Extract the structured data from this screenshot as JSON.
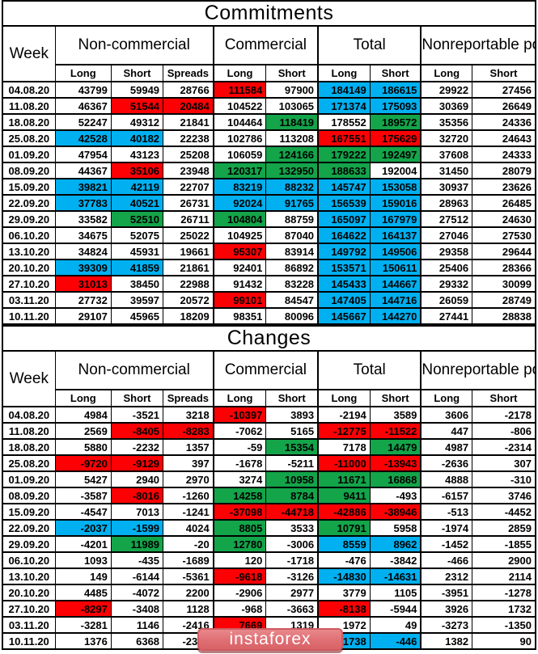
{
  "colors": {
    "red": "#fd0004",
    "green": "#14a44a",
    "blue": "#00b0f0"
  },
  "watermark": {
    "text": "instaforex"
  },
  "commitments": {
    "title": "Commitments",
    "week_label": "Week",
    "groups": [
      "Non-commercial",
      "Commercial",
      "Total",
      "Nonreportable positions"
    ],
    "subheaders": [
      "Long",
      "Short",
      "Spreads",
      "Long",
      "Short",
      "Long",
      "Short",
      "Long",
      "Short"
    ],
    "rows": [
      {
        "date": "04.08.20",
        "cells": [
          [
            "43799",
            ""
          ],
          [
            "59949",
            ""
          ],
          [
            "28766",
            ""
          ],
          [
            "111584",
            "r"
          ],
          [
            "97900",
            ""
          ],
          [
            "184149",
            "b"
          ],
          [
            "186615",
            "b"
          ],
          [
            "29922",
            ""
          ],
          [
            "27456",
            ""
          ]
        ]
      },
      {
        "date": "11.08.20",
        "cells": [
          [
            "46367",
            ""
          ],
          [
            "51544",
            "r"
          ],
          [
            "20484",
            "r"
          ],
          [
            "104522",
            ""
          ],
          [
            "103065",
            ""
          ],
          [
            "171374",
            "b"
          ],
          [
            "175093",
            "b"
          ],
          [
            "30369",
            ""
          ],
          [
            "26649",
            ""
          ]
        ]
      },
      {
        "date": "18.08.20",
        "cells": [
          [
            "52247",
            ""
          ],
          [
            "49312",
            ""
          ],
          [
            "21841",
            ""
          ],
          [
            "104464",
            ""
          ],
          [
            "118419",
            "g"
          ],
          [
            "178552",
            ""
          ],
          [
            "189572",
            "g"
          ],
          [
            "35356",
            ""
          ],
          [
            "24336",
            ""
          ]
        ]
      },
      {
        "date": "25.08.20",
        "cells": [
          [
            "42528",
            "b"
          ],
          [
            "40182",
            "b"
          ],
          [
            "22238",
            ""
          ],
          [
            "102786",
            ""
          ],
          [
            "113208",
            ""
          ],
          [
            "167551",
            "r"
          ],
          [
            "175629",
            "r"
          ],
          [
            "32720",
            ""
          ],
          [
            "24643",
            ""
          ]
        ]
      },
      {
        "date": "01.09.20",
        "cells": [
          [
            "47954",
            ""
          ],
          [
            "43123",
            ""
          ],
          [
            "25208",
            ""
          ],
          [
            "106059",
            ""
          ],
          [
            "124166",
            "g"
          ],
          [
            "179222",
            "g"
          ],
          [
            "192497",
            "g"
          ],
          [
            "37608",
            ""
          ],
          [
            "24333",
            ""
          ]
        ]
      },
      {
        "date": "08.09.20",
        "cells": [
          [
            "44367",
            ""
          ],
          [
            "35106",
            "r"
          ],
          [
            "23948",
            ""
          ],
          [
            "120317",
            "g"
          ],
          [
            "132950",
            "g"
          ],
          [
            "188633",
            "g"
          ],
          [
            "192004",
            ""
          ],
          [
            "31450",
            ""
          ],
          [
            "28079",
            ""
          ]
        ]
      },
      {
        "date": "15.09.20",
        "cells": [
          [
            "39821",
            "b"
          ],
          [
            "42119",
            "b"
          ],
          [
            "22707",
            ""
          ],
          [
            "83219",
            "b"
          ],
          [
            "88232",
            "b"
          ],
          [
            "145747",
            "b"
          ],
          [
            "153058",
            "b"
          ],
          [
            "30937",
            ""
          ],
          [
            "23626",
            ""
          ]
        ]
      },
      {
        "date": "22.09.20",
        "cells": [
          [
            "37783",
            "b"
          ],
          [
            "40521",
            "b"
          ],
          [
            "26731",
            ""
          ],
          [
            "92024",
            "b"
          ],
          [
            "91765",
            "b"
          ],
          [
            "156539",
            "b"
          ],
          [
            "159016",
            "b"
          ],
          [
            "28963",
            ""
          ],
          [
            "26485",
            ""
          ]
        ]
      },
      {
        "date": "29.09.20",
        "cells": [
          [
            "33582",
            ""
          ],
          [
            "52510",
            "g"
          ],
          [
            "26711",
            ""
          ],
          [
            "104804",
            "g"
          ],
          [
            "88759",
            ""
          ],
          [
            "165097",
            "b"
          ],
          [
            "167979",
            "b"
          ],
          [
            "27512",
            ""
          ],
          [
            "24630",
            ""
          ]
        ]
      },
      {
        "date": "06.10.20",
        "cells": [
          [
            "34675",
            ""
          ],
          [
            "52075",
            ""
          ],
          [
            "25022",
            ""
          ],
          [
            "104925",
            ""
          ],
          [
            "87040",
            ""
          ],
          [
            "164622",
            "b"
          ],
          [
            "164137",
            "b"
          ],
          [
            "27046",
            ""
          ],
          [
            "27530",
            ""
          ]
        ]
      },
      {
        "date": "13.10.20",
        "cells": [
          [
            "34824",
            ""
          ],
          [
            "45931",
            ""
          ],
          [
            "19661",
            ""
          ],
          [
            "95307",
            "r"
          ],
          [
            "83914",
            ""
          ],
          [
            "149792",
            "b"
          ],
          [
            "149506",
            "b"
          ],
          [
            "29358",
            ""
          ],
          [
            "29644",
            ""
          ]
        ]
      },
      {
        "date": "20.10.20",
        "cells": [
          [
            "39309",
            "b"
          ],
          [
            "41859",
            "b"
          ],
          [
            "21861",
            ""
          ],
          [
            "92401",
            ""
          ],
          [
            "86892",
            ""
          ],
          [
            "153571",
            "b"
          ],
          [
            "150611",
            "b"
          ],
          [
            "25406",
            ""
          ],
          [
            "28366",
            ""
          ]
        ]
      },
      {
        "date": "27.10.20",
        "cells": [
          [
            "31013",
            "r"
          ],
          [
            "38450",
            ""
          ],
          [
            "22988",
            ""
          ],
          [
            "91432",
            ""
          ],
          [
            "83228",
            ""
          ],
          [
            "145433",
            "b"
          ],
          [
            "144667",
            "b"
          ],
          [
            "29332",
            ""
          ],
          [
            "30099",
            ""
          ]
        ]
      },
      {
        "date": "03.11.20",
        "cells": [
          [
            "27732",
            ""
          ],
          [
            "39597",
            ""
          ],
          [
            "20572",
            ""
          ],
          [
            "99101",
            "r"
          ],
          [
            "84547",
            ""
          ],
          [
            "147405",
            "b"
          ],
          [
            "144716",
            "b"
          ],
          [
            "26059",
            ""
          ],
          [
            "28749",
            ""
          ]
        ]
      },
      {
        "date": "10.11.20",
        "cells": [
          [
            "29107",
            ""
          ],
          [
            "45965",
            ""
          ],
          [
            "18209",
            ""
          ],
          [
            "98351",
            ""
          ],
          [
            "80096",
            ""
          ],
          [
            "145667",
            "b",
            1
          ],
          [
            "144270",
            "b",
            1
          ],
          [
            "27441",
            ""
          ],
          [
            "28838",
            ""
          ]
        ]
      }
    ]
  },
  "changes": {
    "title": "Changes",
    "week_label": "Week",
    "groups": [
      "Non-commercial",
      "Commercial",
      "Total",
      "Nonreportable positions"
    ],
    "subheaders": [
      "Long",
      "Short",
      "Spreads",
      "Long",
      "Short",
      "Long",
      "Short",
      "Long",
      "Short"
    ],
    "rows": [
      {
        "date": "04.08.20",
        "cells": [
          [
            "4984",
            ""
          ],
          [
            "-3521",
            ""
          ],
          [
            "3218",
            ""
          ],
          [
            "-10397",
            "r"
          ],
          [
            "3893",
            ""
          ],
          [
            "-2194",
            ""
          ],
          [
            "3589",
            ""
          ],
          [
            "3606",
            ""
          ],
          [
            "-2178",
            ""
          ]
        ]
      },
      {
        "date": "11.08.20",
        "cells": [
          [
            "2569",
            ""
          ],
          [
            "-8405",
            "r"
          ],
          [
            "-8283",
            "r"
          ],
          [
            "-7062",
            ""
          ],
          [
            "5165",
            ""
          ],
          [
            "-12775",
            "r"
          ],
          [
            "-11522",
            "r"
          ],
          [
            "447",
            ""
          ],
          [
            "-806",
            ""
          ]
        ]
      },
      {
        "date": "18.08.20",
        "cells": [
          [
            "5880",
            ""
          ],
          [
            "-2232",
            ""
          ],
          [
            "1357",
            ""
          ],
          [
            "-59",
            ""
          ],
          [
            "15354",
            "g"
          ],
          [
            "7178",
            ""
          ],
          [
            "14479",
            "g"
          ],
          [
            "4987",
            ""
          ],
          [
            "-2314",
            ""
          ]
        ]
      },
      {
        "date": "25.08.20",
        "cells": [
          [
            "-9720",
            "r"
          ],
          [
            "-9129",
            "r"
          ],
          [
            "397",
            ""
          ],
          [
            "-1678",
            ""
          ],
          [
            "-5211",
            ""
          ],
          [
            "-11000",
            "r"
          ],
          [
            "-13943",
            "r"
          ],
          [
            "-2636",
            ""
          ],
          [
            "307",
            ""
          ]
        ]
      },
      {
        "date": "01.09.20",
        "cells": [
          [
            "5427",
            ""
          ],
          [
            "2940",
            ""
          ],
          [
            "2970",
            ""
          ],
          [
            "3274",
            ""
          ],
          [
            "10958",
            "g"
          ],
          [
            "11671",
            "g"
          ],
          [
            "16868",
            "g"
          ],
          [
            "4888",
            ""
          ],
          [
            "-310",
            ""
          ]
        ]
      },
      {
        "date": "08.09.20",
        "cells": [
          [
            "-3587",
            ""
          ],
          [
            "-8016",
            "r"
          ],
          [
            "-1260",
            ""
          ],
          [
            "14258",
            "g"
          ],
          [
            "8784",
            "g"
          ],
          [
            "9411",
            "g"
          ],
          [
            "-493",
            ""
          ],
          [
            "-6157",
            ""
          ],
          [
            "3746",
            ""
          ]
        ]
      },
      {
        "date": "15.09.20",
        "cells": [
          [
            "-4547",
            ""
          ],
          [
            "7013",
            ""
          ],
          [
            "-1241",
            ""
          ],
          [
            "-37098",
            "r"
          ],
          [
            "-44718",
            "r"
          ],
          [
            "-42886",
            "r"
          ],
          [
            "-38946",
            "r"
          ],
          [
            "-513",
            ""
          ],
          [
            "-4452",
            ""
          ]
        ]
      },
      {
        "date": "22.09.20",
        "cells": [
          [
            "-2037",
            "b"
          ],
          [
            "-1599",
            "b"
          ],
          [
            "4024",
            ""
          ],
          [
            "8805",
            "g"
          ],
          [
            "3533",
            ""
          ],
          [
            "10791",
            "g"
          ],
          [
            "5958",
            ""
          ],
          [
            "-1974",
            ""
          ],
          [
            "2859",
            ""
          ]
        ]
      },
      {
        "date": "29.09.20",
        "cells": [
          [
            "-4201",
            ""
          ],
          [
            "11989",
            "g"
          ],
          [
            "-20",
            ""
          ],
          [
            "12780",
            "g"
          ],
          [
            "-3006",
            ""
          ],
          [
            "8559",
            "b"
          ],
          [
            "8962",
            "b"
          ],
          [
            "-1452",
            ""
          ],
          [
            "-1855",
            ""
          ]
        ]
      },
      {
        "date": "06.10.20",
        "cells": [
          [
            "1093",
            ""
          ],
          [
            "-435",
            ""
          ],
          [
            "-1689",
            ""
          ],
          [
            "120",
            ""
          ],
          [
            "-1718",
            ""
          ],
          [
            "-476",
            ""
          ],
          [
            "-3842",
            ""
          ],
          [
            "-466",
            ""
          ],
          [
            "2900",
            ""
          ]
        ]
      },
      {
        "date": "13.10.20",
        "cells": [
          [
            "149",
            ""
          ],
          [
            "-6144",
            ""
          ],
          [
            "-5361",
            ""
          ],
          [
            "-9618",
            "r"
          ],
          [
            "-3126",
            ""
          ],
          [
            "-14830",
            "b"
          ],
          [
            "-14631",
            "b"
          ],
          [
            "2312",
            ""
          ],
          [
            "2114",
            ""
          ]
        ]
      },
      {
        "date": "20.10.20",
        "cells": [
          [
            "4485",
            ""
          ],
          [
            "-4072",
            ""
          ],
          [
            "2200",
            ""
          ],
          [
            "-2906",
            ""
          ],
          [
            "2977",
            ""
          ],
          [
            "3779",
            ""
          ],
          [
            "1105",
            ""
          ],
          [
            "-3951",
            ""
          ],
          [
            "-1278",
            ""
          ]
        ]
      },
      {
        "date": "27.10.20",
        "cells": [
          [
            "-8297",
            "r"
          ],
          [
            "-3408",
            ""
          ],
          [
            "1128",
            ""
          ],
          [
            "-968",
            ""
          ],
          [
            "-3663",
            ""
          ],
          [
            "-8138",
            "r"
          ],
          [
            "-5944",
            ""
          ],
          [
            "3926",
            ""
          ],
          [
            "1732",
            ""
          ]
        ]
      },
      {
        "date": "03.11.20",
        "cells": [
          [
            "-3281",
            ""
          ],
          [
            "1146",
            ""
          ],
          [
            "-2416",
            ""
          ],
          [
            "7669",
            "r"
          ],
          [
            "1319",
            ""
          ],
          [
            "1972",
            ""
          ],
          [
            "49",
            ""
          ],
          [
            "-3273",
            ""
          ],
          [
            "-1350",
            ""
          ]
        ]
      },
      {
        "date": "10.11.20",
        "cells": [
          [
            "1376",
            ""
          ],
          [
            "6368",
            ""
          ],
          [
            "-2363",
            ""
          ],
          [
            "-750",
            ""
          ],
          [
            "-4451",
            ""
          ],
          [
            "-1738",
            "b",
            1
          ],
          [
            "-446",
            "b",
            1
          ],
          [
            "1382",
            ""
          ],
          [
            "90",
            ""
          ]
        ]
      }
    ]
  }
}
